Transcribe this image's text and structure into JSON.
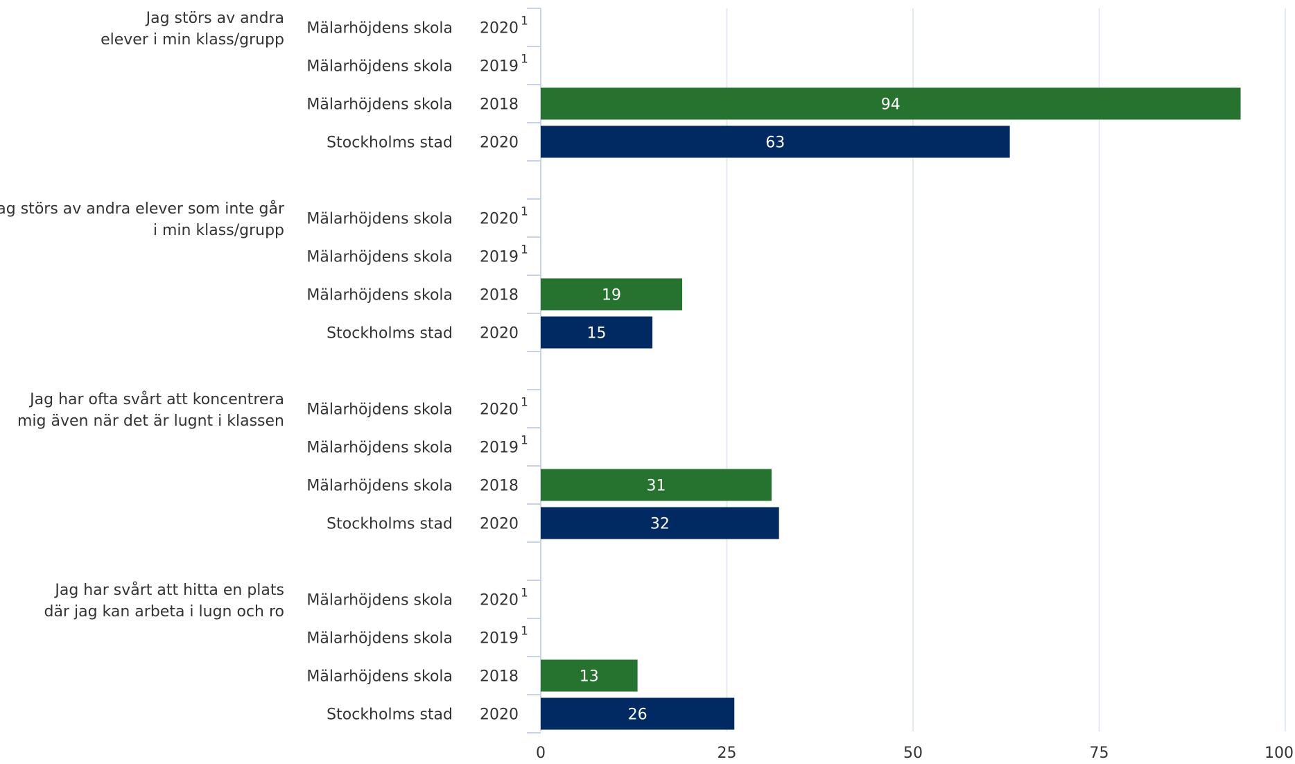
{
  "chart_data": {
    "type": "bar",
    "orientation": "horizontal",
    "xlim": [
      0,
      100
    ],
    "x_ticks": [
      "0",
      "25",
      "50",
      "75",
      "100"
    ],
    "grid": true,
    "colors": {
      "school_2018": "#267330",
      "stockholm_2020": "#002a61",
      "grid": "#dce3ee",
      "axis": "#c8d2e6",
      "text": "#333333",
      "bar_label": "#ffffff"
    },
    "groups": [
      {
        "label_lines": [
          "Jag störs av andra",
          "elever i min klass/grupp"
        ],
        "rows": [
          {
            "entity": "Mälarhöjdens skola",
            "year": "2020",
            "note": "1",
            "value": null
          },
          {
            "entity": "Mälarhöjdens skola",
            "year": "2019",
            "note": "1",
            "value": null
          },
          {
            "entity": "Mälarhöjdens skola",
            "year": "2018",
            "note": "",
            "value": 94,
            "label": "94",
            "color_key": "school_2018"
          },
          {
            "entity": "Stockholms stad",
            "year": "2020",
            "note": "",
            "value": 63,
            "label": "63",
            "color_key": "stockholm_2020"
          }
        ]
      },
      {
        "label_lines": [
          "Jag störs av andra elever som inte går",
          "i min klass/grupp"
        ],
        "rows": [
          {
            "entity": "Mälarhöjdens skola",
            "year": "2020",
            "note": "1",
            "value": null
          },
          {
            "entity": "Mälarhöjdens skola",
            "year": "2019",
            "note": "1",
            "value": null
          },
          {
            "entity": "Mälarhöjdens skola",
            "year": "2018",
            "note": "",
            "value": 19,
            "label": "19",
            "color_key": "school_2018"
          },
          {
            "entity": "Stockholms stad",
            "year": "2020",
            "note": "",
            "value": 15,
            "label": "15",
            "color_key": "stockholm_2020"
          }
        ]
      },
      {
        "label_lines": [
          "Jag har ofta svårt att koncentrera",
          "mig även när det är lugnt i klassen"
        ],
        "rows": [
          {
            "entity": "Mälarhöjdens skola",
            "year": "2020",
            "note": "1",
            "value": null
          },
          {
            "entity": "Mälarhöjdens skola",
            "year": "2019",
            "note": "1",
            "value": null
          },
          {
            "entity": "Mälarhöjdens skola",
            "year": "2018",
            "note": "",
            "value": 31,
            "label": "31",
            "color_key": "school_2018"
          },
          {
            "entity": "Stockholms stad",
            "year": "2020",
            "note": "",
            "value": 32,
            "label": "32",
            "color_key": "stockholm_2020"
          }
        ]
      },
      {
        "label_lines": [
          "Jag har svårt att hitta en plats",
          "där jag kan arbeta i lugn och ro"
        ],
        "rows": [
          {
            "entity": "Mälarhöjdens skola",
            "year": "2020",
            "note": "1",
            "value": null
          },
          {
            "entity": "Mälarhöjdens skola",
            "year": "2019",
            "note": "1",
            "value": null
          },
          {
            "entity": "Mälarhöjdens skola",
            "year": "2018",
            "note": "",
            "value": 13,
            "label": "13",
            "color_key": "school_2018"
          },
          {
            "entity": "Stockholms stad",
            "year": "2020",
            "note": "",
            "value": 26,
            "label": "26",
            "color_key": "stockholm_2020"
          }
        ]
      }
    ]
  }
}
